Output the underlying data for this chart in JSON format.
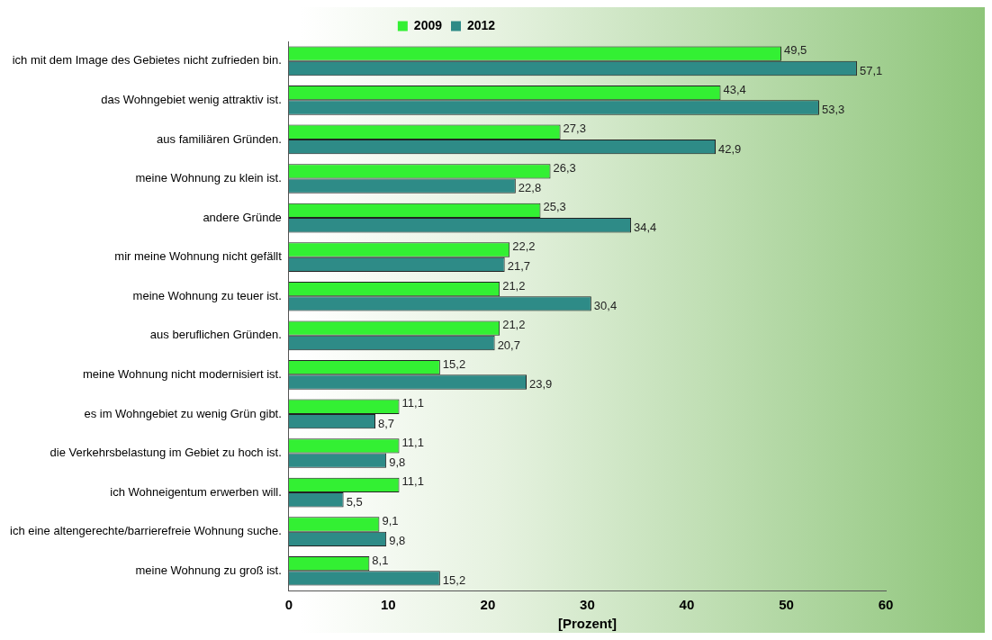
{
  "chart_data": {
    "type": "bar",
    "orientation": "horizontal",
    "xlabel": "[Prozent]",
    "categories": [
      "ich mit dem Image des Gebietes nicht zufrieden bin.",
      "das Wohngebiet wenig attraktiv ist.",
      "aus familiären Gründen.",
      "meine Wohnung zu klein ist.",
      "andere Gründe",
      "mir meine Wohnung nicht gefällt",
      "meine Wohnung zu teuer ist.",
      "aus beruflichen Gründen.",
      "meine Wohnung nicht modernisiert ist.",
      "es im Wohngebiet zu wenig Grün gibt.",
      "die Verkehrsbelastung im Gebiet zu hoch ist.",
      "ich Wohneigentum erwerben will.",
      "ich eine altengerechte/barrierefreie Wohnung suche.",
      "meine Wohnung zu groß ist."
    ],
    "series": [
      {
        "name": "2009",
        "color": "#33f033",
        "values": [
          49.5,
          43.4,
          27.3,
          26.3,
          25.3,
          22.2,
          21.2,
          21.2,
          15.2,
          11.1,
          11.1,
          11.1,
          9.1,
          8.1
        ],
        "value_labels": [
          "49,5",
          "43,4",
          "27,3",
          "26,3",
          "25,3",
          "22,2",
          "21,2",
          "21,2",
          "15,2",
          "11,1",
          "11,1",
          "11,1",
          "9,1",
          "8,1"
        ]
      },
      {
        "name": "2012",
        "color": "#2e8b87",
        "values": [
          57.1,
          53.3,
          42.9,
          22.8,
          34.4,
          21.7,
          30.4,
          20.7,
          23.9,
          8.7,
          9.8,
          5.5,
          9.8,
          15.2
        ],
        "value_labels": [
          "57,1",
          "53,3",
          "42,9",
          "22,8",
          "34,4",
          "21,7",
          "30,4",
          "20,7",
          "23,9",
          "8,7",
          "9,8",
          "5,5",
          "9,8",
          "15,2"
        ]
      }
    ],
    "xlim": [
      0,
      60
    ],
    "xticks": [
      0,
      10,
      20,
      30,
      40,
      50,
      60
    ],
    "grid": false,
    "legend": "top"
  }
}
